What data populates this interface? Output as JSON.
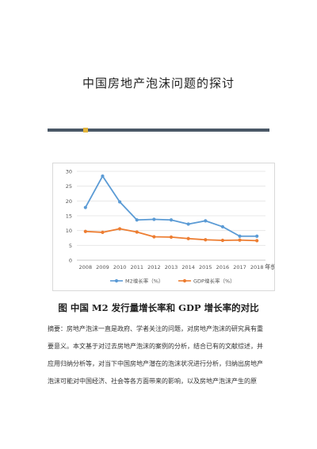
{
  "document": {
    "title": "中国房地产泡沫问题的探讨",
    "figure_caption": "图    中国 M2 发行量增长率和 GDP 增长率的对比",
    "abstract_lines": [
      "摘要：房地产泡沫一直是政府、学者关注的问题，对房地产泡沫的研究具有重",
      "要意义。本文基于对过去房地产泡沫的案例的分析，结合已有的文献综述，并",
      "应用归纳分析等，对当下中国房地产潜在的泡沫状况进行分析，归纳出房地产",
      "泡沫可能对中国经济、社会等各方面带来的影响，以及房地产泡沫产生的原"
    ]
  },
  "colors": {
    "divider": "#4a5866",
    "divider_accent": "#e2b33a",
    "m2": "#5b9bd5",
    "gdp": "#ed7d31"
  },
  "chart_data": {
    "type": "line",
    "categories": [
      "2008",
      "2009",
      "2010",
      "2011",
      "2012",
      "2013",
      "2014",
      "2015",
      "2016",
      "2017",
      "2018"
    ],
    "xlabel": "年份",
    "ylabel": "",
    "ylim": [
      0,
      30
    ],
    "yticks": [
      0,
      5,
      10,
      15,
      20,
      25,
      30
    ],
    "grid": true,
    "legend": "bottom",
    "series": [
      {
        "name": "M2增长率（%）",
        "color": "#5b9bd5",
        "values": [
          17.8,
          28.4,
          19.7,
          13.6,
          13.8,
          13.6,
          12.2,
          13.3,
          11.3,
          8.1,
          8.1
        ]
      },
      {
        "name": "GDP增长率（%）",
        "color": "#ed7d31",
        "values": [
          9.7,
          9.4,
          10.6,
          9.5,
          7.9,
          7.8,
          7.3,
          6.9,
          6.7,
          6.8,
          6.6
        ]
      }
    ]
  }
}
